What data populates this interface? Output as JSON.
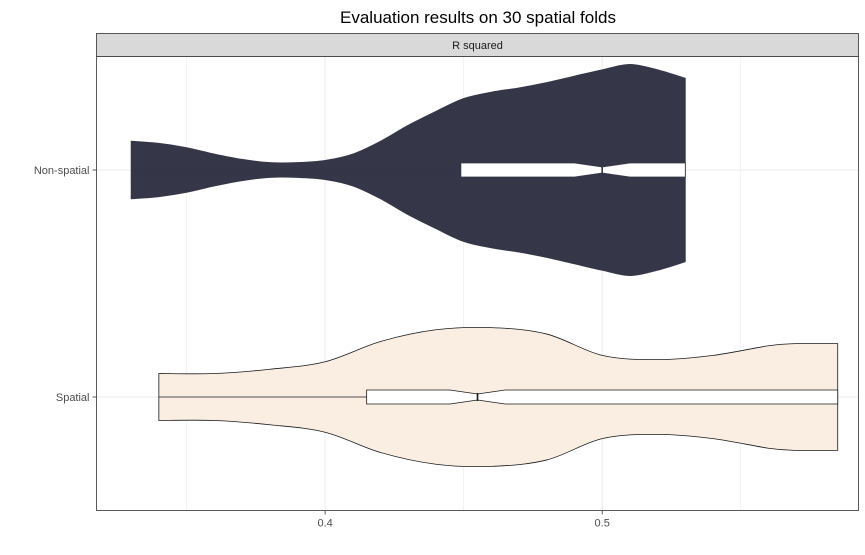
{
  "chart_data": {
    "type": "violin",
    "title": "Evaluation results on 30 spatial folds",
    "facet_label": "R squared",
    "xlabel": "",
    "ylabel": "",
    "xlim": [
      0.3175,
      0.5925
    ],
    "x_ticks": [
      0.4,
      0.5
    ],
    "x_tick_labels": [
      "0.4",
      "0.5"
    ],
    "categories": [
      "Non-spatial",
      "Spatial"
    ],
    "grid": true,
    "legend": "none",
    "series": [
      {
        "category": "Non-spatial",
        "fill": "#353748",
        "outline": "#353748",
        "min": 0.33,
        "max": 0.53,
        "density": [
          [
            0.33,
            0.27
          ],
          [
            0.34,
            0.25
          ],
          [
            0.35,
            0.21
          ],
          [
            0.36,
            0.15
          ],
          [
            0.37,
            0.1
          ],
          [
            0.38,
            0.07
          ],
          [
            0.39,
            0.07
          ],
          [
            0.4,
            0.09
          ],
          [
            0.41,
            0.15
          ],
          [
            0.42,
            0.27
          ],
          [
            0.43,
            0.42
          ],
          [
            0.44,
            0.55
          ],
          [
            0.45,
            0.67
          ],
          [
            0.46,
            0.73
          ],
          [
            0.47,
            0.77
          ],
          [
            0.48,
            0.82
          ],
          [
            0.49,
            0.88
          ],
          [
            0.5,
            0.94
          ],
          [
            0.51,
            0.99
          ],
          [
            0.52,
            0.94
          ],
          [
            0.53,
            0.86
          ]
        ],
        "box": {
          "q1": 0.449,
          "median": 0.5,
          "q3": 0.53,
          "notch_low": 0.49,
          "notch_high": 0.51,
          "color": "#ffffff"
        }
      },
      {
        "category": "Spatial",
        "fill": "#faeee3",
        "outline": "#1a1a1a",
        "min": 0.34,
        "max": 0.585,
        "density": [
          [
            0.34,
            0.22
          ],
          [
            0.36,
            0.22
          ],
          [
            0.38,
            0.26
          ],
          [
            0.4,
            0.33
          ],
          [
            0.42,
            0.52
          ],
          [
            0.44,
            0.63
          ],
          [
            0.46,
            0.65
          ],
          [
            0.48,
            0.59
          ],
          [
            0.5,
            0.39
          ],
          [
            0.52,
            0.35
          ],
          [
            0.54,
            0.39
          ],
          [
            0.56,
            0.48
          ],
          [
            0.57,
            0.5
          ],
          [
            0.585,
            0.5
          ]
        ],
        "box": {
          "q1": 0.415,
          "median": 0.455,
          "q3": 0.585,
          "notch_low": 0.445,
          "notch_high": 0.465,
          "color": "#ffffff"
        }
      }
    ]
  }
}
